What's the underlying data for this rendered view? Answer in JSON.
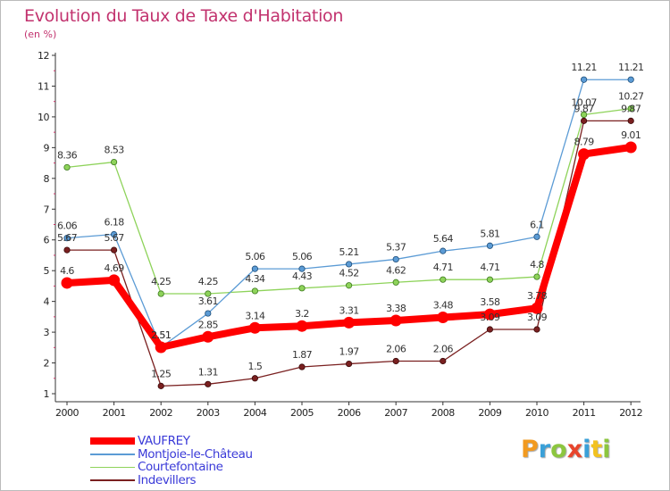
{
  "header": {
    "title": "Evolution du Taux de Taxe d'Habitation",
    "subtitle": "(en %)"
  },
  "logo": {
    "text": "Proxiti",
    "letter_colors": [
      "#f29a1f",
      "#3aa0d8",
      "#8cc63f",
      "#e8452c",
      "#3aa0d8",
      "#f2c21f",
      "#8cc63f"
    ]
  },
  "chart_data": {
    "type": "line",
    "title": "Evolution du Taux de Taxe d'Habitation",
    "ylabel": "(en %)",
    "x": [
      "2000",
      "2001",
      "2002",
      "2003",
      "2004",
      "2005",
      "2006",
      "2007",
      "2008",
      "2009",
      "2010",
      "2011",
      "2012"
    ],
    "ylim": [
      1,
      12
    ],
    "yticks": [
      "1",
      "2",
      "3",
      "4",
      "5",
      "6",
      "7",
      "8",
      "9",
      "10",
      "11",
      "12"
    ],
    "grid": false,
    "legend_position": "bottom-left",
    "series": [
      {
        "name": "VAUFREY",
        "color": "#ff0000",
        "values": [
          4.6,
          4.69,
          2.51,
          2.85,
          3.14,
          3.2,
          3.31,
          3.38,
          3.48,
          3.58,
          3.78,
          8.79,
          9.01
        ],
        "labels": [
          "4.6",
          "4.69",
          "2.51",
          "2.85",
          "3.14",
          "3.2",
          "3.31",
          "3.38",
          "3.48",
          "3.58",
          "3.78",
          "8.79",
          "9.01"
        ]
      },
      {
        "name": "Montjoie-le-Château",
        "color": "#5b9bd5",
        "values": [
          6.06,
          6.18,
          2.51,
          3.61,
          5.06,
          5.06,
          5.21,
          5.37,
          5.64,
          5.81,
          6.1,
          11.21,
          11.21
        ],
        "labels": [
          "6.06",
          "6.18",
          "2.51",
          "3.61",
          "5.06",
          "5.06",
          "5.21",
          "5.37",
          "5.64",
          "5.81",
          "6.1",
          "11.21",
          "11.21"
        ]
      },
      {
        "name": "Courtefontaine",
        "color": "#8ed35a",
        "values": [
          8.36,
          8.53,
          4.25,
          4.25,
          4.34,
          4.43,
          4.52,
          4.62,
          4.71,
          4.71,
          4.8,
          10.07,
          10.27
        ],
        "labels": [
          "8.36",
          "8.53",
          "4.25",
          "4.25",
          "4.34",
          "4.43",
          "4.52",
          "4.62",
          "4.71",
          "4.71",
          "4.8",
          "10.07",
          "10.27"
        ]
      },
      {
        "name": "Indevillers",
        "color": "#7a2020",
        "values": [
          5.67,
          5.67,
          1.25,
          1.31,
          1.5,
          1.87,
          1.97,
          2.06,
          2.06,
          3.09,
          3.09,
          9.87,
          9.87
        ],
        "labels": [
          "5.67",
          "5.67",
          "1.25",
          "1.31",
          "1.5",
          "1.87",
          "1.97",
          "2.06",
          "2.06",
          "3.09",
          "3.09",
          "9.87",
          "9.87"
        ]
      }
    ]
  }
}
